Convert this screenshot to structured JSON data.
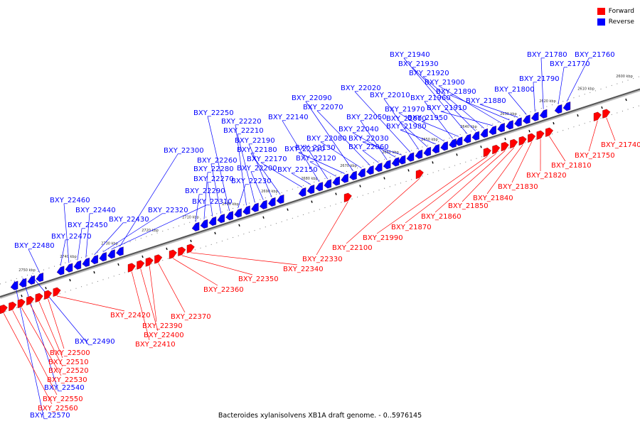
{
  "legend": {
    "forward": {
      "label": "Forward",
      "color": "#ff0000"
    },
    "reverse": {
      "label": "Reverse",
      "color": "#0000ff"
    }
  },
  "caption": "Bacteroides xylanisolvens XB1A draft genome. - 0..5976145",
  "scale_ticks": [
    "2600 kbp",
    "2610 kbp",
    "2620 kbp",
    "2630 kbp",
    "2640 kbp",
    "2650 kbp",
    "2660 kbp",
    "2670 kbp",
    "2680 kbp",
    "2690 kbp",
    "2700 kbp",
    "2710 kbp",
    "2720 kbp",
    "2730 kbp",
    "2740 kbp",
    "2750 kbp"
  ],
  "forward_genes": [
    "BXY_21740",
    "BXY_21750",
    "BXY_21810",
    "BXY_21820",
    "BXY_21830",
    "BXY_21840",
    "BXY_21850",
    "BXY_21860",
    "BXY_21870",
    "BXY_21990",
    "BXY_22100",
    "BXY_22330",
    "BXY_22340",
    "BXY_22350",
    "BXY_22360",
    "BXY_22370",
    "BXY_22390",
    "BXY_22400",
    "BXY_22410",
    "BXY_22420",
    "BXY_22500",
    "BXY_22510",
    "BXY_22520",
    "BXY_22530",
    "BXY_22550",
    "BXY_22560"
  ],
  "reverse_genes": [
    "BXY_21760",
    "BXY_21770",
    "BXY_21780",
    "BXY_21790",
    "BXY_21800",
    "BXY_21880",
    "BXY_21890",
    "BXY_21900",
    "BXY_21910",
    "BXY_21920",
    "BXY_21930",
    "BXY_21940",
    "BXY_21950",
    "BXY_21960",
    "BXY_21970",
    "BXY_21980",
    "BXY_22000",
    "BXY_22010",
    "BXY_22020",
    "BXY_22030",
    "BXY_22040",
    "BXY_22050",
    "BXY_22060",
    "BXY_22070",
    "BXY_22080",
    "BXY_22090",
    "BXY_22110",
    "BXY_22120",
    "BXY_22130",
    "BXY_22140",
    "BXY_22150",
    "BXY_22170",
    "BXY_22180",
    "BXY_22190",
    "BXY_22200",
    "BXY_22210",
    "BXY_22220",
    "BXY_22230",
    "BXY_22250",
    "BXY_22260",
    "BXY_22270",
    "BXY_22280",
    "BXY_22290",
    "BXY_22300",
    "BXY_22310",
    "BXY_22320",
    "BXY_22430",
    "BXY_22440",
    "BXY_22450",
    "BXY_22460",
    "BXY_22470",
    "BXY_22480",
    "BXY_22490",
    "BXY_22540",
    "BXY_22570"
  ]
}
